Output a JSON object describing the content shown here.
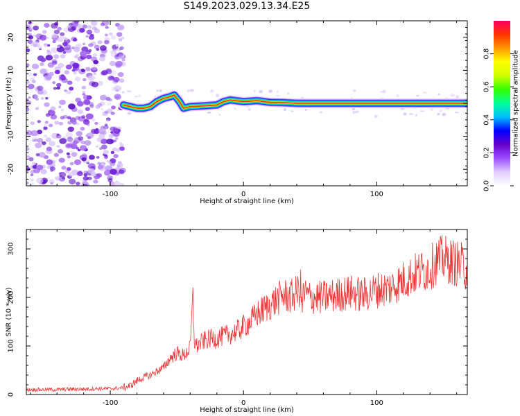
{
  "title": "S149.2023.029.13.34.E25",
  "chart_data": [
    {
      "type": "heatmap",
      "xlabel": "Height of straight line (km)",
      "ylabel": "Frequency (Hz)",
      "xlim": [
        -163,
        168
      ],
      "ylim": [
        -25,
        25
      ],
      "x_ticks": [
        -100,
        0,
        100
      ],
      "y_ticks": [
        -20,
        -10,
        0,
        10,
        20
      ],
      "grid": false,
      "noise_region": {
        "x_range": [
          -163,
          -90
        ],
        "description_color": "#7b2fd8"
      },
      "ridge": {
        "x": [
          -90,
          -85,
          -80,
          -75,
          -70,
          -65,
          -60,
          -55,
          -52,
          -48,
          -45,
          -40,
          -30,
          -20,
          -15,
          -10,
          0,
          10,
          20,
          30,
          40,
          50,
          60,
          80,
          100,
          120,
          140,
          168
        ],
        "y": [
          -0.5,
          -1,
          -1.5,
          -1.5,
          -1,
          0.5,
          1.5,
          2,
          2.5,
          0.5,
          -1.5,
          -1,
          -0.8,
          -0.5,
          0.5,
          1,
          0.5,
          0.8,
          0.3,
          0.2,
          0,
          0,
          0,
          0,
          0,
          0,
          0,
          0
        ]
      },
      "colorbar": {
        "label": "Normalized spectral amplitude",
        "range": [
          0,
          1
        ],
        "ticks": [
          "0.0",
          "0.2",
          "0.4",
          "0.6",
          "0.8"
        ],
        "colors": [
          "#ffffff",
          "#e0ccff",
          "#9b4dff",
          "#6600cc",
          "#0000ff",
          "#00bfff",
          "#00ff99",
          "#33ff00",
          "#ccff00",
          "#ffff00",
          "#ff9900",
          "#ff3300",
          "#ff0066"
        ]
      }
    },
    {
      "type": "line",
      "xlabel": "Height of straight line (km)",
      "ylabel": "SNR (10 * v/v)",
      "xlim": [
        -163,
        168
      ],
      "ylim": [
        0,
        340
      ],
      "x_ticks": [
        -100,
        0,
        100
      ],
      "y_ticks": [
        0,
        100,
        200,
        300
      ],
      "grid": false,
      "series": [
        {
          "color": "#ee3333",
          "x": [
            -163,
            -150,
            -140,
            -130,
            -120,
            -110,
            -100,
            -90,
            -85,
            -80,
            -75,
            -70,
            -65,
            -60,
            -55,
            -50,
            -45,
            -40,
            -38,
            -37,
            -35,
            -30,
            -25,
            -20,
            -15,
            -10,
            -5,
            0,
            5,
            10,
            15,
            20,
            25,
            30,
            35,
            40,
            43,
            44,
            45,
            50,
            60,
            70,
            80,
            90,
            100,
            110,
            120,
            130,
            140,
            145,
            150,
            155,
            160,
            165,
            168
          ],
          "y": [
            10,
            10,
            10,
            11,
            11,
            12,
            12,
            14,
            18,
            28,
            35,
            40,
            48,
            55,
            75,
            85,
            80,
            95,
            200,
            110,
            100,
            110,
            115,
            115,
            120,
            125,
            130,
            140,
            150,
            165,
            175,
            185,
            195,
            205,
            200,
            210,
            220,
            175,
            210,
            200,
            200,
            205,
            210,
            205,
            215,
            220,
            235,
            250,
            260,
            275,
            280,
            275,
            270,
            265,
            255
          ]
        }
      ]
    }
  ]
}
